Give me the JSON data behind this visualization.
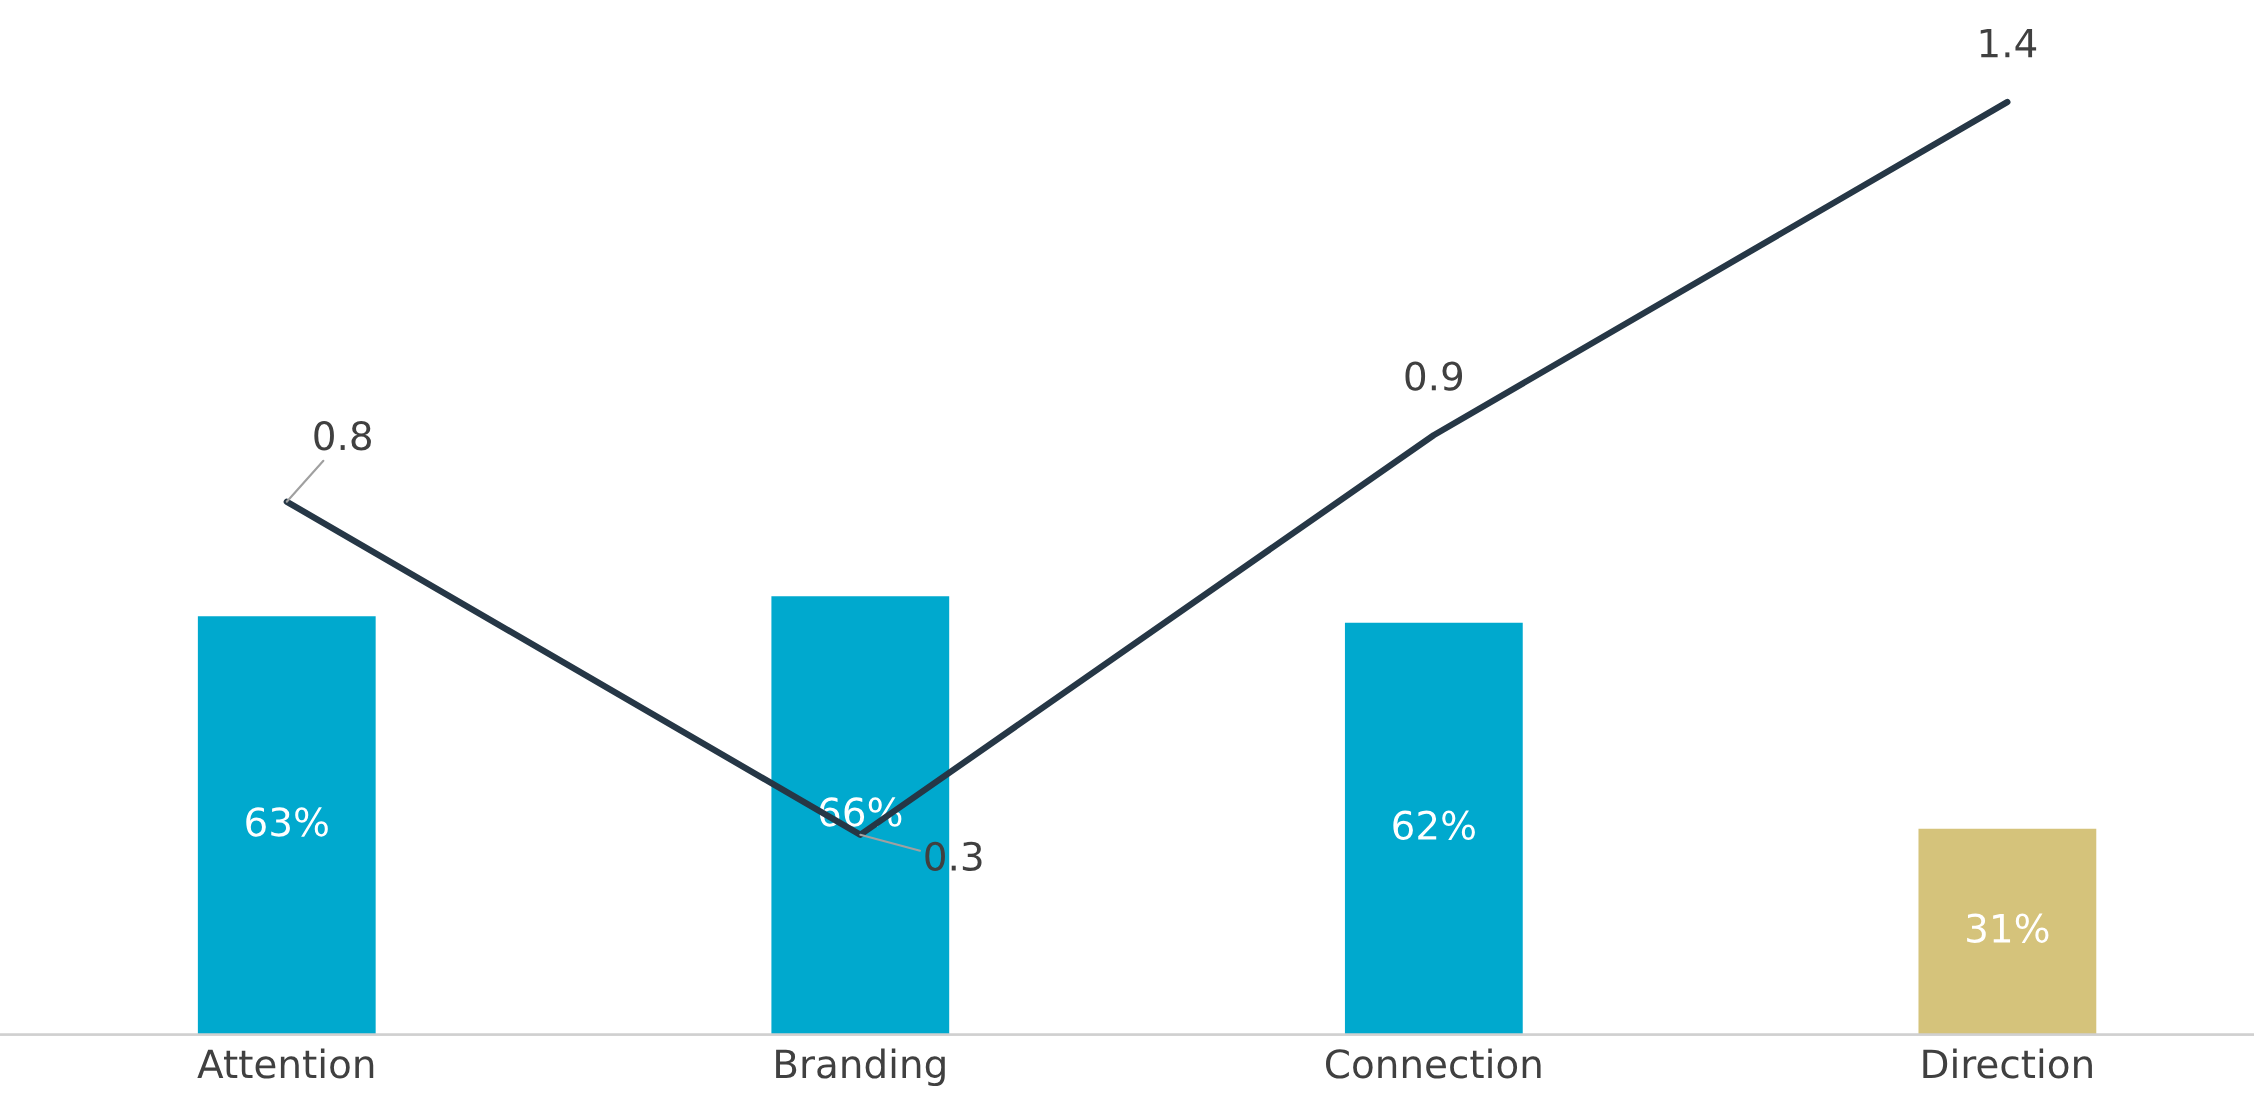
{
  "chart_data": {
    "type": "bar",
    "categories": [
      "Attention",
      "Branding",
      "Connection",
      "Direction"
    ],
    "series": [
      {
        "colors": [
          "#00a9ce",
          "#00a9ce",
          "#00a9ce",
          "#d5c37b"
        ],
        "values": [
          63,
          66,
          62,
          31
        ],
        "value_labels": [
          "63%",
          "66%",
          "62%",
          "31%"
        ]
      },
      {
        "type": "line",
        "axis": "y2",
        "color": "#263746",
        "values": [
          0.8,
          0.3,
          0.9,
          1.4
        ],
        "data_labels": true
      }
    ],
    "tick_labels": "x",
    "grid": false,
    "legend": false
  }
}
